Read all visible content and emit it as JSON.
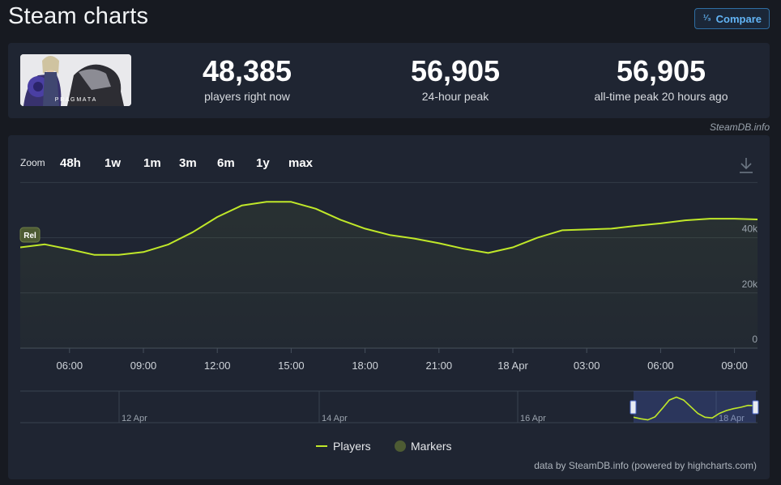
{
  "page": {
    "title": "Steam charts",
    "compare_label": "Compare",
    "compare_icon": "fraction-icon",
    "attribution": "SteamDB.info"
  },
  "game": {
    "logo_text": "P R A G M A T A"
  },
  "stats": [
    {
      "value": "48,385",
      "label": "players right now"
    },
    {
      "value": "56,905",
      "label": "24-hour peak"
    },
    {
      "value": "56,905",
      "label": "all-time peak 20 hours ago"
    }
  ],
  "zoom": {
    "label": "Zoom",
    "options": [
      {
        "label": "48h",
        "active": true
      },
      {
        "label": "1w",
        "active": true
      },
      {
        "label": "1m",
        "active": false
      },
      {
        "label": "3m",
        "active": false
      },
      {
        "label": "6m",
        "active": false
      },
      {
        "label": "1y",
        "active": false
      },
      {
        "label": "max",
        "active": true
      }
    ]
  },
  "chart_data": {
    "type": "line",
    "x": [
      "04:00",
      "05:00",
      "06:00",
      "07:00",
      "08:00",
      "09:00",
      "10:00",
      "11:00",
      "12:00",
      "13:00",
      "14:00",
      "15:00",
      "16:00",
      "17:00",
      "18:00",
      "19:00",
      "20:00",
      "21:00",
      "22:00",
      "23:00",
      "18 Apr 00:00",
      "01:00",
      "02:00",
      "03:00",
      "04:00",
      "05:00",
      "06:00",
      "07:00",
      "08:00",
      "09:00",
      "10:00"
    ],
    "series": [
      {
        "name": "Players",
        "values": [
          36500,
          37600,
          35800,
          33800,
          33800,
          34800,
          37500,
          42000,
          47500,
          51700,
          53000,
          53000,
          50500,
          46500,
          43300,
          41000,
          39700,
          38000,
          36000,
          34500,
          36500,
          40000,
          42700,
          43000,
          43300,
          44300,
          45200,
          46300,
          46900,
          46900,
          46600
        ]
      }
    ],
    "x_ticks": [
      "06:00",
      "09:00",
      "12:00",
      "15:00",
      "18:00",
      "21:00",
      "18 Apr",
      "03:00",
      "06:00",
      "09:00"
    ],
    "y_ticks": [
      "0",
      "20k",
      "40k"
    ],
    "ylim": [
      0,
      61000
    ],
    "marker": {
      "label": "Rel"
    },
    "legend": {
      "position": "bottom-center",
      "items": [
        {
          "name": "Players",
          "color": "#c0e829"
        },
        {
          "name": "Markers",
          "color": "#4d5b33"
        }
      ]
    },
    "navigator": {
      "date_labels": [
        "12 Apr",
        "14 Apr",
        "16 Apr",
        "18 Apr"
      ],
      "values": [
        2,
        1.2,
        0.6,
        2.2,
        6.5,
        11,
        12.5,
        11,
        7.5,
        4,
        2,
        1.6,
        4,
        5.5,
        6.5,
        7.2,
        8.2,
        8
      ]
    },
    "line_color": "#c0e829",
    "grid": true
  },
  "credit": "data by SteamDB.info (powered by highcharts.com)"
}
